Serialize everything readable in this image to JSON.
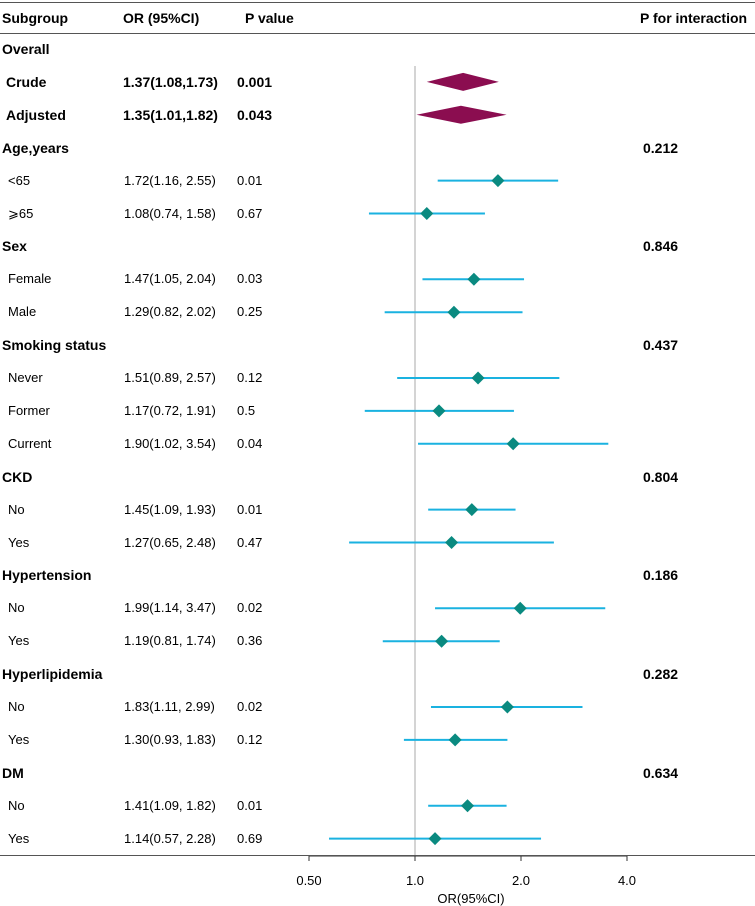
{
  "headers": {
    "subgroup": "Subgroup",
    "or": "OR (95%CI)",
    "p": "P value",
    "p_interaction": "P for interaction"
  },
  "chart_data": {
    "type": "forest",
    "xlabel": "OR(95%CI)",
    "x_scale": "log2",
    "xlim": [
      0.5,
      4.0
    ],
    "ticks": [
      {
        "value": 0.5,
        "label": "0.50"
      },
      {
        "value": 1.0,
        "label": "1.0"
      },
      {
        "value": 2.0,
        "label": "2.0"
      },
      {
        "value": 4.0,
        "label": "4.0"
      }
    ],
    "reference_line": 1.0,
    "colors": {
      "summary": "#8b0d50",
      "point": "#0a8a80",
      "ci": "#1ab2e0",
      "reference": "#aaaaaa"
    },
    "rows": [
      {
        "label": "Overall",
        "kind": "group"
      },
      {
        "label": "Crude",
        "kind": "summary",
        "or_text": "1.37(1.08,1.73)",
        "p": "0.001",
        "or": 1.37,
        "lo": 1.08,
        "hi": 1.73
      },
      {
        "label": "Adjusted",
        "kind": "summary",
        "or_text": "1.35(1.01,1.82)",
        "p": "0.043",
        "or": 1.35,
        "lo": 1.01,
        "hi": 1.82
      },
      {
        "label": "Age,years",
        "kind": "group",
        "p_int": "0.212"
      },
      {
        "label": "<65",
        "kind": "item",
        "or_text": "1.72(1.16, 2.55)",
        "p": "0.01",
        "or": 1.72,
        "lo": 1.16,
        "hi": 2.55
      },
      {
        "label": "⩾65",
        "kind": "item",
        "or_text": "1.08(0.74, 1.58)",
        "p": "0.67",
        "or": 1.08,
        "lo": 0.74,
        "hi": 1.58
      },
      {
        "label": "Sex",
        "kind": "group",
        "p_int": "0.846"
      },
      {
        "label": "Female",
        "kind": "item",
        "or_text": "1.47(1.05, 2.04)",
        "p": "0.03",
        "or": 1.47,
        "lo": 1.05,
        "hi": 2.04
      },
      {
        "label": "Male",
        "kind": "item",
        "or_text": "1.29(0.82, 2.02)",
        "p": "0.25",
        "or": 1.29,
        "lo": 0.82,
        "hi": 2.02
      },
      {
        "label": "Smoking status",
        "kind": "group",
        "p_int": "0.437"
      },
      {
        "label": "Never",
        "kind": "item",
        "or_text": "1.51(0.89, 2.57)",
        "p": "0.12",
        "or": 1.51,
        "lo": 0.89,
        "hi": 2.57
      },
      {
        "label": "Former",
        "kind": "item",
        "or_text": "1.17(0.72, 1.91)",
        "p": "0.5",
        "or": 1.17,
        "lo": 0.72,
        "hi": 1.91
      },
      {
        "label": "Current",
        "kind": "item",
        "or_text": "1.90(1.02, 3.54)",
        "p": "0.04",
        "or": 1.9,
        "lo": 1.02,
        "hi": 3.54
      },
      {
        "label": "CKD",
        "kind": "group",
        "p_int": "0.804"
      },
      {
        "label": "No",
        "kind": "item",
        "or_text": "1.45(1.09, 1.93)",
        "p": "0.01",
        "or": 1.45,
        "lo": 1.09,
        "hi": 1.93
      },
      {
        "label": "Yes",
        "kind": "item",
        "or_text": "1.27(0.65, 2.48)",
        "p": "0.47",
        "or": 1.27,
        "lo": 0.65,
        "hi": 2.48
      },
      {
        "label": "Hypertension",
        "kind": "group",
        "p_int": "0.186"
      },
      {
        "label": "No",
        "kind": "item",
        "or_text": "1.99(1.14, 3.47)",
        "p": "0.02",
        "or": 1.99,
        "lo": 1.14,
        "hi": 3.47
      },
      {
        "label": "Yes",
        "kind": "item",
        "or_text": "1.19(0.81, 1.74)",
        "p": "0.36",
        "or": 1.19,
        "lo": 0.81,
        "hi": 1.74
      },
      {
        "label": "Hyperlipidemia",
        "kind": "group",
        "p_int": "0.282"
      },
      {
        "label": "No",
        "kind": "item",
        "or_text": "1.83(1.11, 2.99)",
        "p": "0.02",
        "or": 1.83,
        "lo": 1.11,
        "hi": 2.99
      },
      {
        "label": "Yes",
        "kind": "item",
        "or_text": "1.30(0.93, 1.83)",
        "p": "0.12",
        "or": 1.3,
        "lo": 0.93,
        "hi": 1.83
      },
      {
        "label": "DM",
        "kind": "group",
        "p_int": "0.634"
      },
      {
        "label": "No",
        "kind": "item",
        "or_text": "1.41(1.09, 1.82)",
        "p": "0.01",
        "or": 1.41,
        "lo": 1.09,
        "hi": 1.82
      },
      {
        "label": "Yes",
        "kind": "item",
        "or_text": "1.14(0.57, 2.28)",
        "p": "0.69",
        "or": 1.14,
        "lo": 0.57,
        "hi": 2.28
      }
    ]
  }
}
